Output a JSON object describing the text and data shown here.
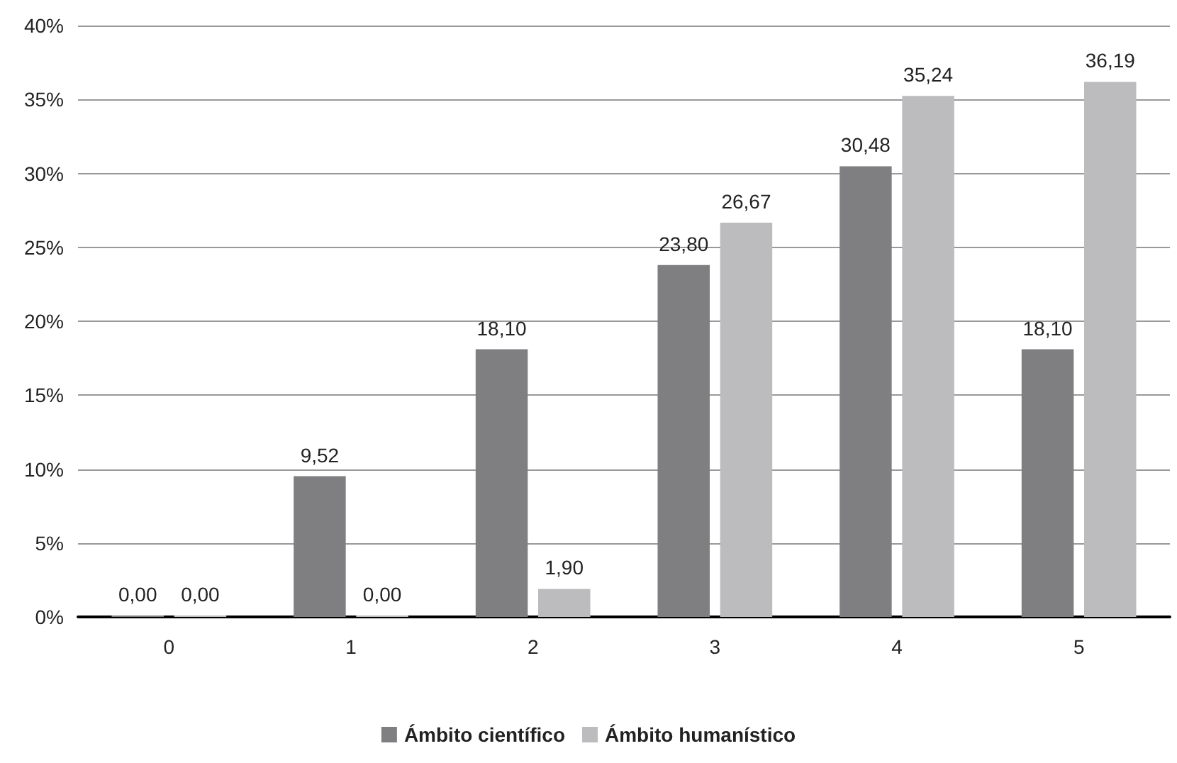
{
  "chart_data": {
    "type": "bar",
    "categories": [
      "0",
      "1",
      "2",
      "3",
      "4",
      "5"
    ],
    "series": [
      {
        "name": "Ámbito científico",
        "color": "#7f7f81",
        "values": [
          0.0,
          9.52,
          18.1,
          23.8,
          30.48,
          18.1
        ],
        "value_labels": [
          "0,00",
          "9,52",
          "18,10",
          "23,80",
          "30,48",
          "18,10"
        ]
      },
      {
        "name": "Ámbito humanístico",
        "color": "#bcbcbe",
        "values": [
          0.0,
          0.0,
          1.9,
          26.67,
          35.24,
          36.19
        ],
        "value_labels": [
          "0,00",
          "0,00",
          "1,90",
          "26,67",
          "35,24",
          "36,19"
        ]
      }
    ],
    "ylim": [
      0,
      40
    ],
    "yticks": [
      {
        "value": 0,
        "label": "0%"
      },
      {
        "value": 5,
        "label": "5%"
      },
      {
        "value": 10,
        "label": "10%"
      },
      {
        "value": 15,
        "label": "15%"
      },
      {
        "value": 20,
        "label": "20%"
      },
      {
        "value": 25,
        "label": "25%"
      },
      {
        "value": 30,
        "label": "30%"
      },
      {
        "value": 35,
        "label": "35%"
      },
      {
        "value": 40,
        "label": "40%"
      }
    ],
    "grid": "y",
    "legend": "bottom"
  }
}
